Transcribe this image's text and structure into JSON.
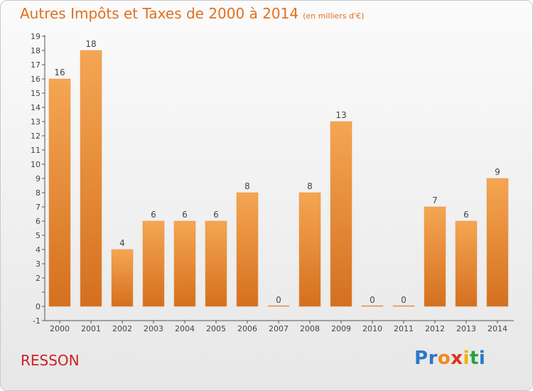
{
  "title": "Autres Impôts et Taxes de 2000 à 2014",
  "subtitle": "(en milliers d'€)",
  "commune": "RESSON",
  "logo": {
    "text": "Proxiti",
    "letter_colors": [
      "#2a78c8",
      "#2a78c8",
      "#f08a1c",
      "#e03020",
      "#f0b000",
      "#2aa040",
      "#2a78c8"
    ]
  },
  "colors": {
    "accent": "#e07020",
    "bar_light": "#f5a653",
    "bar_dark": "#d4701f",
    "commune": "#cc2222"
  },
  "chart_data": {
    "type": "bar",
    "categories": [
      "2000",
      "2001",
      "2002",
      "2003",
      "2004",
      "2005",
      "2006",
      "2007",
      "2008",
      "2009",
      "2010",
      "2011",
      "2012",
      "2013",
      "2014"
    ],
    "values": [
      16,
      18,
      4,
      6,
      6,
      6,
      8,
      0,
      8,
      13,
      0,
      0,
      7,
      6,
      9
    ],
    "ylim": [
      -1,
      19
    ],
    "yticks": [
      -1,
      0,
      2,
      3,
      4,
      5,
      6,
      7,
      8,
      9,
      10,
      11,
      12,
      13,
      14,
      15,
      16,
      17,
      18,
      19
    ],
    "grid": false,
    "data_labels": true
  }
}
